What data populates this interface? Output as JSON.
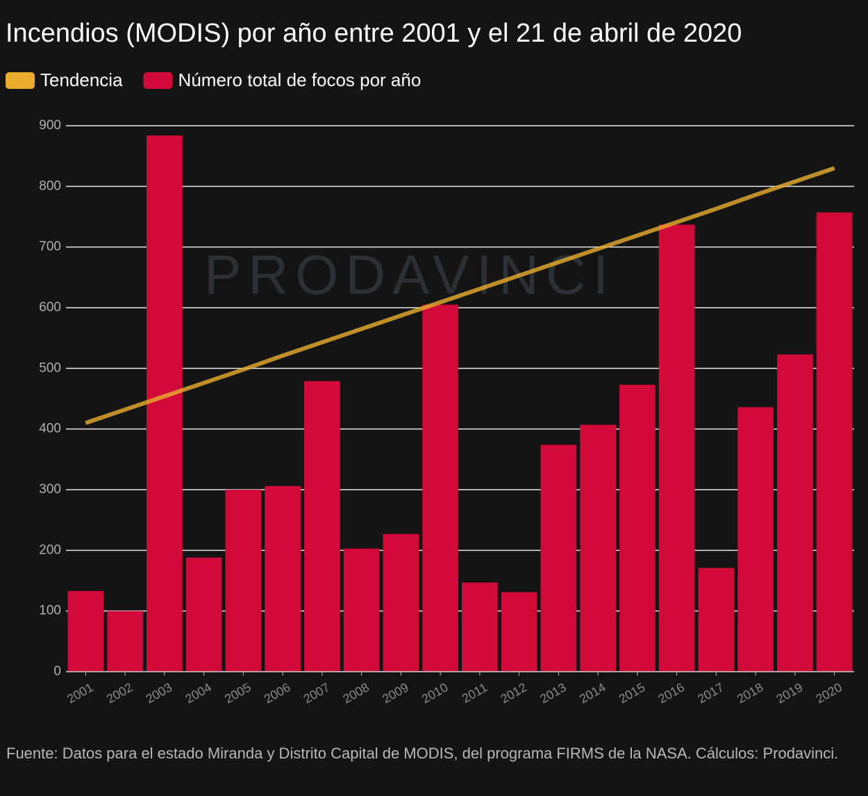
{
  "chart_data": {
    "type": "bar",
    "title": "Incendios (MODIS) por año entre 2001 y el 21 de abril de 2020",
    "watermark": "PRODAVINCI",
    "source": "Fuente: Datos para el estado Miranda y Distrito Capital de MODIS, del programa FIRMS de la NASA. Cálculos: Prodavinci.",
    "categories": [
      "2001",
      "2002",
      "2003",
      "2004",
      "2005",
      "2006",
      "2007",
      "2008",
      "2009",
      "2010",
      "2011",
      "2012",
      "2013",
      "2014",
      "2015",
      "2016",
      "2017",
      "2018",
      "2019",
      "2020"
    ],
    "series": [
      {
        "name": "Tendencia",
        "type": "line",
        "color": "#e8ac2e",
        "values": [
          410,
          432,
          454,
          476,
          498,
          521,
          543,
          565,
          587,
          609,
          631,
          653,
          675,
          697,
          719,
          741,
          763,
          786,
          808,
          830
        ]
      },
      {
        "name": "Número total de focos por año",
        "type": "bar",
        "color": "#d10a3a",
        "values": [
          133,
          100,
          884,
          188,
          300,
          306,
          479,
          203,
          227,
          605,
          147,
          131,
          374,
          407,
          473,
          737,
          171,
          436,
          523,
          757
        ]
      }
    ],
    "ylim": [
      0,
      900
    ],
    "yticks": [
      0,
      100,
      200,
      300,
      400,
      500,
      600,
      700,
      800,
      900
    ],
    "grid": true,
    "legend": "top-left"
  }
}
